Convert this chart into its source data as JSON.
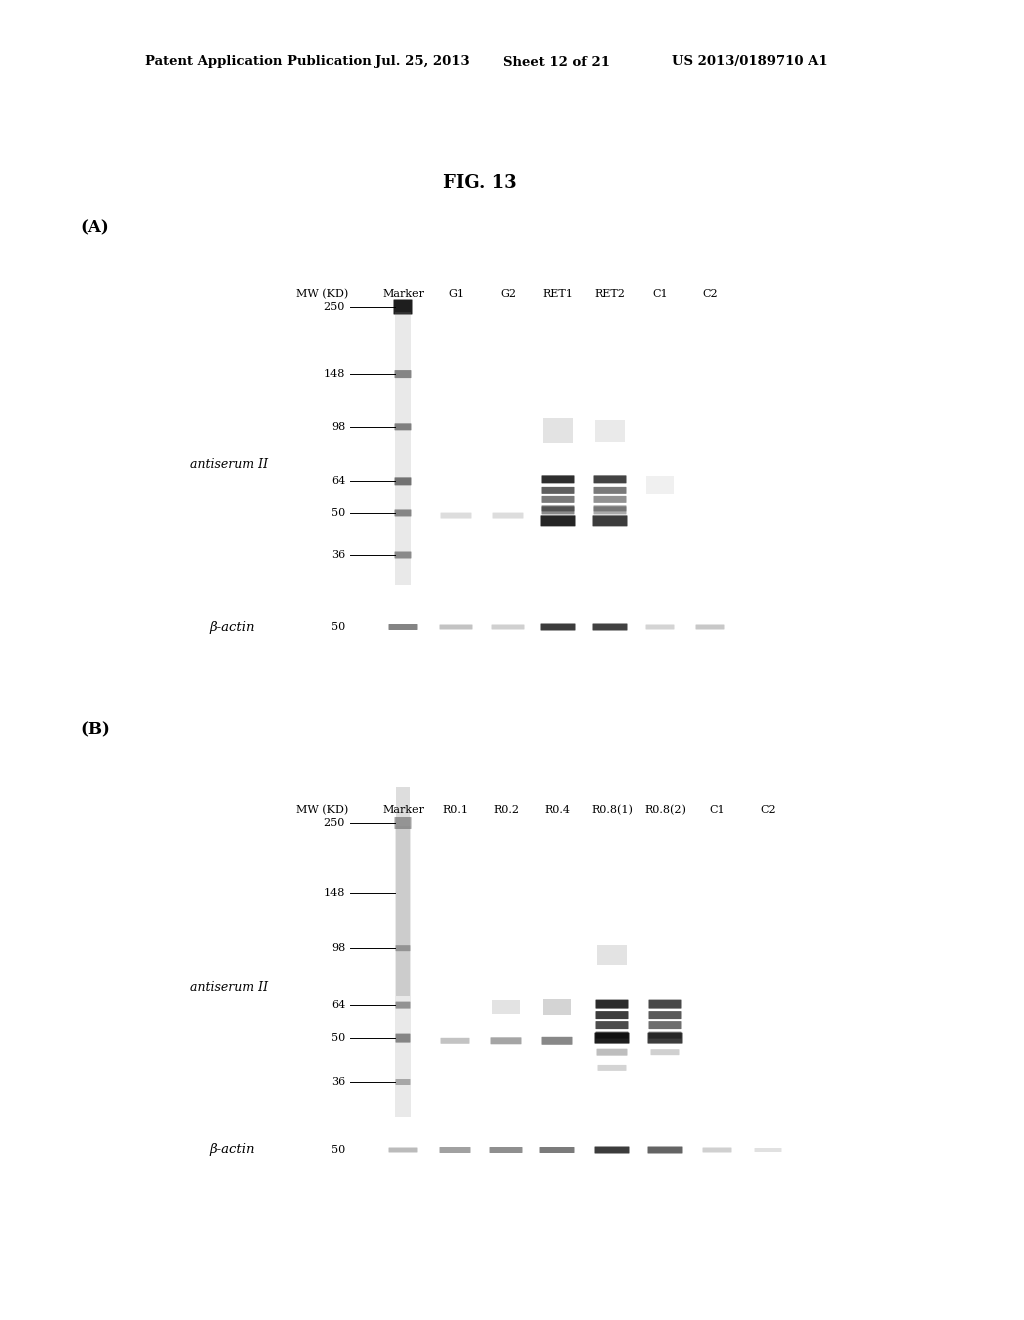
{
  "background_color": "#ffffff",
  "header_text": "Patent Application Publication",
  "header_date": "Jul. 25, 2013",
  "header_sheet": "Sheet 12 of 21",
  "header_patent": "US 2013/0189710 A1",
  "figure_title": "FIG. 13",
  "panel_A_label": "(A)",
  "panel_B_label": "(B)",
  "panel_A": {
    "mw_label": "MW (KD)",
    "col_headers": [
      "Marker",
      "G1",
      "G2",
      "RET1",
      "RET2",
      "C1",
      "C2"
    ],
    "mw_markers": [
      250,
      148,
      98,
      64,
      50,
      36
    ],
    "antiserum_label": "antiserum II",
    "beta_actin_label": "β-actin",
    "beta_actin_mw": "50"
  },
  "panel_B": {
    "mw_label": "MW (KD)",
    "col_headers": [
      "Marker",
      "R0.1",
      "R0.2",
      "R0.4",
      "R0.8(1)",
      "R0.8(2)",
      "C1",
      "C2"
    ],
    "mw_markers": [
      250,
      148,
      98,
      64,
      50,
      36
    ],
    "antiserum_label": "antiserum II",
    "beta_actin_label": "β-actin",
    "beta_actin_mw": "50"
  }
}
